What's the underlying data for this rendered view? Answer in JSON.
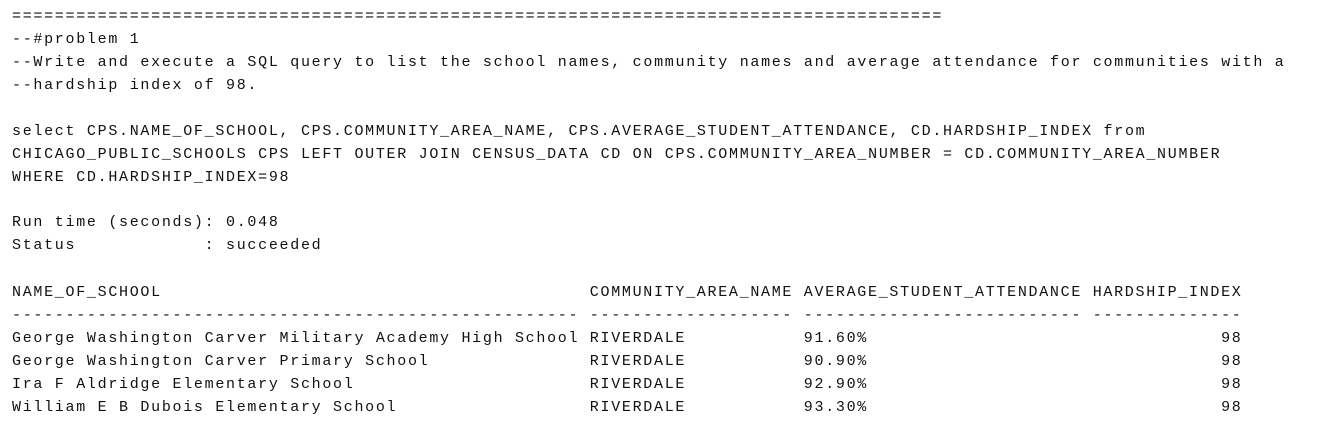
{
  "separator": "=======================================================================================",
  "comment_lines": [
    "--#problem 1",
    "--Write and execute a SQL query to list the school names, community names and average attendance for communities with a",
    "--hardship index of 98."
  ],
  "query_lines": [
    "select CPS.NAME_OF_SCHOOL, CPS.COMMUNITY_AREA_NAME, CPS.AVERAGE_STUDENT_ATTENDANCE, CD.HARDSHIP_INDEX from",
    "CHICAGO_PUBLIC_SCHOOLS CPS LEFT OUTER JOIN CENSUS_DATA CD ON CPS.COMMUNITY_AREA_NUMBER = CD.COMMUNITY_AREA_NUMBER",
    "WHERE CD.HARDSHIP_INDEX=98"
  ],
  "run_time": "Run time (seconds): 0.048",
  "status": "Status            : succeeded",
  "table": {
    "columns": [
      "NAME_OF_SCHOOL",
      "COMMUNITY_AREA_NAME",
      "AVERAGE_STUDENT_ATTENDANCE",
      "HARDSHIP_INDEX"
    ],
    "rules": [
      "-----------------------------------------------------",
      "-------------------",
      "--------------------------",
      "--------------"
    ],
    "rows": [
      [
        "George Washington Carver Military Academy High School",
        "RIVERDALE",
        "91.60%",
        98
      ],
      [
        "George Washington Carver Primary School",
        "RIVERDALE",
        "90.90%",
        98
      ],
      [
        "Ira F Aldridge Elementary School",
        "RIVERDALE",
        "92.90%",
        98
      ],
      [
        "William E B Dubois Elementary School",
        "RIVERDALE",
        "93.30%",
        98
      ]
    ]
  }
}
